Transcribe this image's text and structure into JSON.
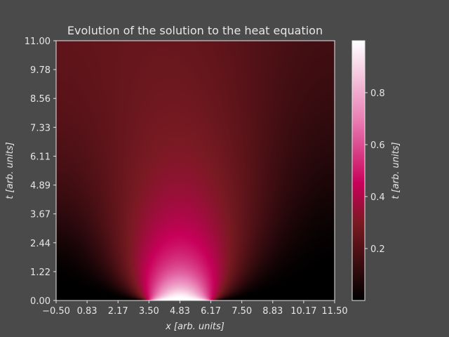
{
  "chart_data": {
    "type": "heatmap",
    "title": "Evolution of the solution to the heat equation",
    "xlabel": "x [arb. units]",
    "ylabel": "t [arb. units]",
    "xlim": [
      -0.5,
      11.5
    ],
    "ylim": [
      0,
      11
    ],
    "x_ticks": [
      "−0.50",
      "0.83",
      "2.17",
      "3.50",
      "4.83",
      "6.17",
      "7.50",
      "8.83",
      "10.17",
      "11.50"
    ],
    "y_ticks": [
      "0.00",
      "1.22",
      "2.44",
      "3.67",
      "4.89",
      "6.11",
      "7.33",
      "8.56",
      "9.78",
      "11.00"
    ],
    "grid": false,
    "colormap": "PuRd_r",
    "colormap_stops": [
      "#000000",
      "#7a1a22",
      "#c8005a",
      "#e980b5",
      "#ffffff"
    ],
    "initial_condition": {
      "type": "pulse",
      "x_start": 3.5,
      "x_end": 6.17,
      "peak_value": 1.0
    },
    "steady_state_value": 0.3,
    "colorbar": {
      "label": "t [arb. units]",
      "range": [
        0,
        1
      ],
      "ticks": [
        "0.2",
        "0.4",
        "0.6",
        "0.8"
      ]
    }
  },
  "style": {
    "background": "#4a4a4a",
    "text_color": "#e6e6e6",
    "axis_color": "#e6e6e6"
  }
}
